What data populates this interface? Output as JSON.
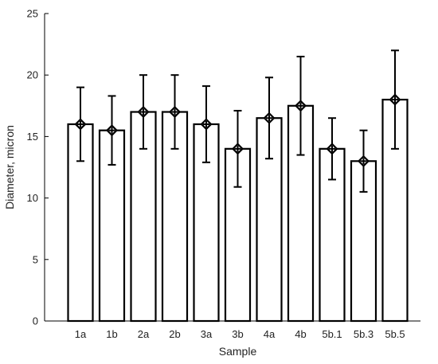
{
  "chart_data": {
    "type": "bar",
    "categories": [
      "1a",
      "1b",
      "2a",
      "2b",
      "3a",
      "3b",
      "4a",
      "4b",
      "5b.1",
      "5b.3",
      "5b.5"
    ],
    "values": [
      16.0,
      15.5,
      17.0,
      17.0,
      16.0,
      14.0,
      16.5,
      17.5,
      14.0,
      13.0,
      18.0
    ],
    "error_low": [
      13.0,
      12.7,
      14.0,
      14.0,
      12.9,
      10.9,
      13.2,
      13.5,
      11.5,
      10.5,
      14.0
    ],
    "error_high": [
      19.0,
      18.3,
      20.0,
      20.0,
      19.1,
      17.1,
      19.8,
      21.5,
      16.5,
      15.5,
      22.0
    ],
    "xlabel": "Sample",
    "ylabel": "Diameter, micron",
    "ylim": [
      0,
      25
    ],
    "yticks": [
      0,
      5,
      10,
      15,
      20,
      25
    ],
    "grid": false,
    "marker": "diamond-crosshair",
    "colors": {
      "bar_fill": "#ffffff",
      "bar_edge": "#000000",
      "error": "#000000"
    }
  }
}
